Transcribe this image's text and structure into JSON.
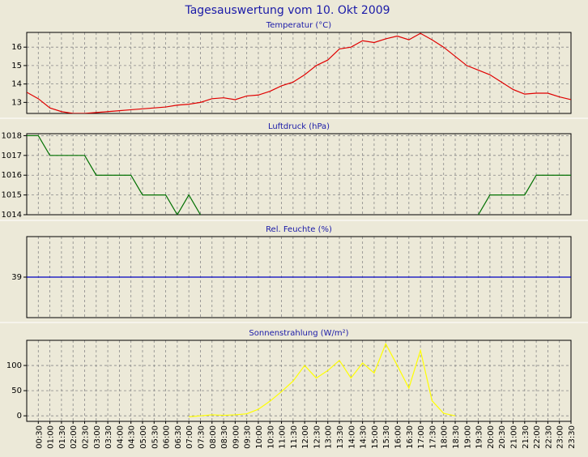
{
  "title": "Tagesauswertung vom 10. Okt 2009",
  "chart_data": [
    {
      "type": "line",
      "title": "Temperatur (°C)",
      "categories": [
        null,
        "00:30",
        "01:00",
        "01:30",
        "02:00",
        "02:30",
        "03:00",
        "03:30",
        "04:00",
        "04:30",
        "05:00",
        "05:30",
        "06:00",
        "06:30",
        "07:00",
        "07:30",
        "08:00",
        "08:30",
        "09:00",
        "09:30",
        "10:00",
        "10:30",
        "11:00",
        "11:30",
        "12:00",
        "12:30",
        "13:00",
        "13:30",
        "14:00",
        "14:30",
        "15:00",
        "15:30",
        "16:00",
        "16:30",
        "17:00",
        "17:30",
        "18:00",
        "18:30",
        "19:00",
        "19:30",
        "20:00",
        "20:30",
        "21:00",
        "21:30",
        "22:00",
        "22:30",
        "23:00",
        "23:30"
      ],
      "series": [
        {
          "name": "Temperatur",
          "color": "#e00000",
          "values": [
            13.55,
            13.2,
            12.7,
            12.5,
            12.4,
            12.4,
            12.45,
            12.5,
            12.55,
            12.6,
            12.65,
            12.7,
            12.75,
            12.85,
            12.9,
            13.0,
            13.2,
            13.25,
            13.15,
            13.35,
            13.4,
            13.6,
            13.9,
            14.1,
            14.5,
            15.0,
            15.3,
            15.9,
            16.0,
            16.35,
            16.25,
            16.45,
            16.6,
            16.4,
            16.75,
            16.4,
            16.0,
            15.5,
            15.0,
            14.75,
            14.5,
            14.1,
            13.7,
            13.45,
            13.5,
            13.5,
            13.3,
            13.15
          ]
        }
      ],
      "ylim": [
        12.4,
        16.8
      ],
      "yticks": [
        13,
        14,
        15,
        16
      ],
      "grid": true
    },
    {
      "type": "line",
      "title": "Luftdruck (hPa)",
      "categories": [
        null,
        "00:30",
        "01:00",
        "01:30",
        "02:00",
        "02:30",
        "03:00",
        "03:30",
        "04:00",
        "04:30",
        "05:00",
        "05:30",
        "06:00",
        "06:30",
        "07:00",
        "07:30",
        "08:00",
        "08:30",
        "09:00",
        "09:30",
        "10:00",
        "10:30",
        "11:00",
        "11:30",
        "12:00",
        "12:30",
        "13:00",
        "13:30",
        "14:00",
        "14:30",
        "15:00",
        "15:30",
        "16:00",
        "16:30",
        "17:00",
        "17:30",
        "18:00",
        "18:30",
        "19:00",
        "19:30",
        "20:00",
        "20:30",
        "21:00",
        "21:30",
        "22:00",
        "22:30",
        "23:00",
        "23:30"
      ],
      "series": [
        {
          "name": "Luftdruck",
          "color": "#007000",
          "values": [
            1018,
            1018,
            1017,
            1017,
            1017,
            1017,
            1016,
            1016,
            1016,
            1016,
            1015,
            1015,
            1015,
            1014,
            1015,
            1014,
            null,
            null,
            null,
            null,
            null,
            null,
            null,
            null,
            null,
            null,
            null,
            null,
            null,
            null,
            null,
            null,
            null,
            null,
            null,
            null,
            null,
            null,
            null,
            1014,
            1015,
            1015,
            1015,
            1015,
            1016,
            1016,
            1016,
            1016
          ]
        }
      ],
      "ylim": [
        1014,
        1018.1
      ],
      "yticks": [
        1014,
        1015,
        1016,
        1017,
        1018
      ],
      "grid": true
    },
    {
      "type": "line",
      "title": "Rel. Feuchte (%)",
      "categories": [
        null,
        "00:30",
        "01:00",
        "01:30",
        "02:00",
        "02:30",
        "03:00",
        "03:30",
        "04:00",
        "04:30",
        "05:00",
        "05:30",
        "06:00",
        "06:30",
        "07:00",
        "07:30",
        "08:00",
        "08:30",
        "09:00",
        "09:30",
        "10:00",
        "10:30",
        "11:00",
        "11:30",
        "12:00",
        "12:30",
        "13:00",
        "13:30",
        "14:00",
        "14:30",
        "15:00",
        "15:30",
        "16:00",
        "16:30",
        "17:00",
        "17:30",
        "18:00",
        "18:30",
        "19:00",
        "19:30",
        "20:00",
        "20:30",
        "21:00",
        "21:30",
        "22:00",
        "22:30",
        "23:00",
        "23:30"
      ],
      "series": [
        {
          "name": "Rel. Feuchte",
          "color": "#0000c0",
          "values": [
            39,
            39,
            39,
            39,
            39,
            39,
            39,
            39,
            39,
            39,
            39,
            39,
            39,
            39,
            39,
            39,
            39,
            39,
            39,
            39,
            39,
            39,
            39,
            39,
            39,
            39,
            39,
            39,
            39,
            39,
            39,
            39,
            39,
            39,
            39,
            39,
            39,
            39,
            39,
            39,
            39,
            39,
            39,
            39,
            39,
            39,
            39,
            39
          ]
        }
      ],
      "ylim": [
        38,
        40
      ],
      "yticks": [
        39
      ],
      "grid": true
    },
    {
      "type": "line",
      "title": "Sonnenstrahlung (W/m²)",
      "categories": [
        null,
        "00:30",
        "01:00",
        "01:30",
        "02:00",
        "02:30",
        "03:00",
        "03:30",
        "04:00",
        "04:30",
        "05:00",
        "05:30",
        "06:00",
        "06:30",
        "07:00",
        "07:30",
        "08:00",
        "08:30",
        "09:00",
        "09:30",
        "10:00",
        "10:30",
        "11:00",
        "11:30",
        "12:00",
        "12:30",
        "13:00",
        "13:30",
        "14:00",
        "14:30",
        "15:00",
        "15:30",
        "16:00",
        "16:30",
        "17:00",
        "17:30",
        "18:00",
        "18:30",
        "19:00",
        "19:30",
        "20:00",
        "20:30",
        "21:00",
        "21:30",
        "22:00",
        "22:30",
        "23:00",
        "23:30"
      ],
      "series": [
        {
          "name": "Sonnenstrahlung",
          "color": "#ffff00",
          "values": [
            null,
            null,
            null,
            null,
            null,
            null,
            null,
            null,
            null,
            null,
            null,
            null,
            null,
            null,
            -2,
            0,
            2,
            1,
            2,
            4,
            13,
            29,
            48,
            69,
            100,
            75,
            90,
            110,
            75,
            105,
            85,
            143,
            100,
            55,
            130,
            30,
            5,
            0,
            null,
            null,
            null,
            null,
            null,
            null,
            null,
            null,
            null,
            null
          ]
        }
      ],
      "ylim": [
        -11,
        150
      ],
      "yticks": [
        0,
        50,
        100
      ],
      "grid": true
    }
  ]
}
